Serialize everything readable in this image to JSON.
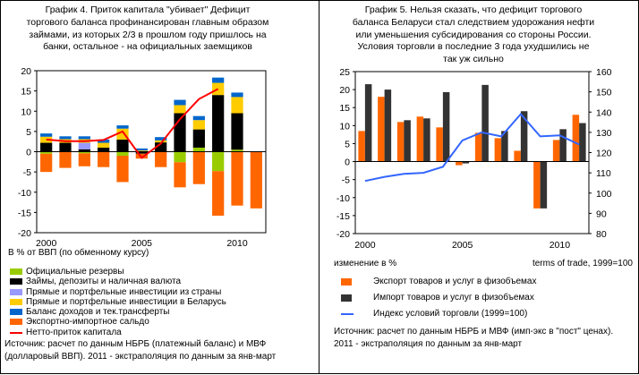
{
  "chart_data": [
    {
      "type": "bar",
      "title": "График 4. Приток капитала \"убивает\" Дефицит торгового баланса профинансирован главным образом займами, из которых 2/3 в прошлом году пришлось на банки, остальное - на официальных заемщиков",
      "ylabel": "В % от ВВП (по обменному курсу)",
      "x": [
        2000,
        2001,
        2002,
        2003,
        2004,
        2005,
        2006,
        2007,
        2008,
        2009,
        2010,
        2011
      ],
      "x_ticks": [
        2000,
        2005,
        2010
      ],
      "ylim": [
        -20,
        20
      ],
      "y_ticks": [
        -20,
        -15,
        -10,
        -5,
        0,
        5,
        10,
        15,
        20
      ],
      "stacked": true,
      "series": [
        {
          "name": "Официальные резервы",
          "color": "#99cc00",
          "values": [
            -0.5,
            0,
            -0.4,
            0,
            -1,
            0,
            0,
            -2.6,
            1,
            -4.8,
            0.5,
            0
          ]
        },
        {
          "name": "Займы, депозиты и наличная валюта",
          "color": "#000000",
          "values": [
            2.2,
            2.2,
            0.6,
            1,
            3,
            -0.5,
            2.3,
            9.5,
            4.5,
            14,
            9,
            0
          ]
        },
        {
          "name": "Прямые и портфельные инвестиции из страны",
          "color": "#9999ff",
          "values": [
            0,
            0,
            1.6,
            0,
            0,
            0,
            0,
            0,
            0,
            0,
            0,
            0
          ]
        },
        {
          "name": "Прямые и портфельные инвестиции в Беларусь",
          "color": "#ffcc00",
          "values": [
            1.5,
            0.9,
            0.9,
            1.2,
            2.7,
            0.3,
            0.5,
            2,
            2.3,
            3,
            4,
            0
          ]
        },
        {
          "name": "Баланс доходов и тек.трансферты",
          "color": "#0066cc",
          "values": [
            0.8,
            0.7,
            0.7,
            0.8,
            0.8,
            0.5,
            0.8,
            1.3,
            1,
            1.3,
            1.1,
            0
          ]
        },
        {
          "name": "Экспортно-импортное сальдо",
          "color": "#ff6600",
          "values": [
            -4.5,
            -4,
            -3.2,
            -3.8,
            -6.5,
            -1.2,
            -3.8,
            -6.2,
            -8,
            -11,
            -13.3,
            -14
          ]
        }
      ],
      "line": {
        "name": "Нетто-приток капитала",
        "color": "#ff0000",
        "values": [
          3,
          2.6,
          2.6,
          2.9,
          5,
          -1.5,
          2,
          8,
          13,
          15.5,
          null,
          null
        ]
      },
      "source": "Источник: расчет по данным НБРБ (платежный баланс) и МВФ (долларовый ВВП). 2011 - экстраполяция по данным за янв-март"
    },
    {
      "type": "bar",
      "title": "График 5. Нельзя сказать, что дефицит торгового баланса Беларуси стал следствием удорожания нефти или уменьшения субсидирования со стороны России. Условия торговли в последние 3 года ухудшились не так уж сильно",
      "ylabel": "изменение в %",
      "y2label": "terms of trade, 1999=100",
      "x": [
        2000,
        2001,
        2002,
        2003,
        2004,
        2005,
        2006,
        2007,
        2008,
        2009,
        2010,
        2011
      ],
      "x_ticks": [
        2000,
        2005,
        2010
      ],
      "ylim": [
        -20,
        25
      ],
      "y_ticks": [
        -20,
        -15,
        -10,
        -5,
        0,
        5,
        10,
        15,
        20,
        25
      ],
      "y2lim": [
        80,
        160
      ],
      "y2_ticks": [
        80,
        90,
        100,
        110,
        120,
        130,
        140,
        150,
        160
      ],
      "series": [
        {
          "name": "Экспорт товаров и услуг в физобъемах",
          "color": "#ff6600",
          "values": [
            8.5,
            18,
            11,
            12.5,
            9.5,
            -1,
            8,
            6.5,
            3,
            -13,
            6,
            13
          ]
        },
        {
          "name": "Импорт товаров и услуг в физобъемах",
          "color": "#333333",
          "values": [
            21.5,
            20,
            11.5,
            12,
            19.3,
            -0.5,
            21.3,
            8.5,
            14,
            -13,
            9,
            10.7
          ]
        }
      ],
      "line": {
        "name": "Индекс условий торговли (1999=100)",
        "color": "#3366ff",
        "axis": "right",
        "values": [
          106,
          108,
          109.5,
          110,
          113,
          126,
          130,
          128,
          139,
          128,
          128.5,
          124
        ]
      },
      "source": "Источник: расчет по данным НБРБ и МВФ (имп-экс в \"пост\" ценах). 2011 - экстраполяция по данным за янв-март"
    }
  ]
}
